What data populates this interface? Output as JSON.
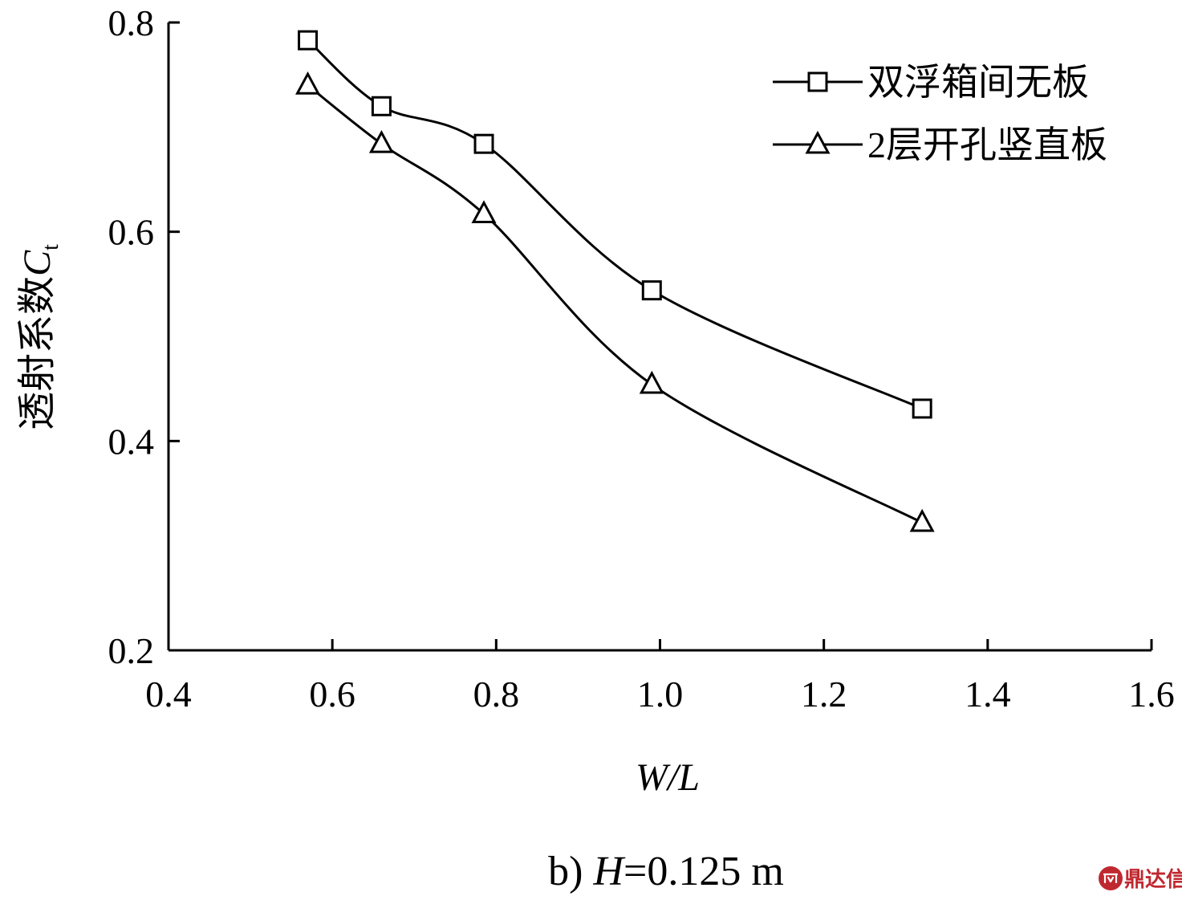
{
  "chart_data": {
    "type": "line",
    "smooth": true,
    "x": [
      0.57,
      0.66,
      0.785,
      0.99,
      1.32
    ],
    "series": [
      {
        "name": "双浮箱间无板",
        "marker": "square",
        "values": [
          0.783,
          0.72,
          0.684,
          0.544,
          0.431
        ]
      },
      {
        "name": "2层开孔竖直板",
        "marker": "triangle",
        "values": [
          0.74,
          0.684,
          0.617,
          0.454,
          0.322
        ]
      }
    ],
    "xlabel": "W/L",
    "ylabel": "透射系数C",
    "ylabel_sub": "t",
    "xlim": [
      0.4,
      1.6
    ],
    "ylim": [
      0.2,
      0.8
    ],
    "xticks": [
      "0.4",
      "0.6",
      "0.8",
      "1.0",
      "1.2",
      "1.4",
      "1.6"
    ],
    "yticks": [
      "0.2",
      "0.4",
      "0.6",
      "0.8"
    ],
    "grid": false,
    "legend_position": "top-right",
    "caption_prefix": "b) ",
    "caption_var": "H",
    "caption_rest": "=0.125 m",
    "colors": {
      "line": "#000000",
      "background": "#ffffff",
      "watermark": "#c0282f"
    }
  },
  "watermark": {
    "text": "鼎达信",
    "icon": "logo-icon"
  }
}
